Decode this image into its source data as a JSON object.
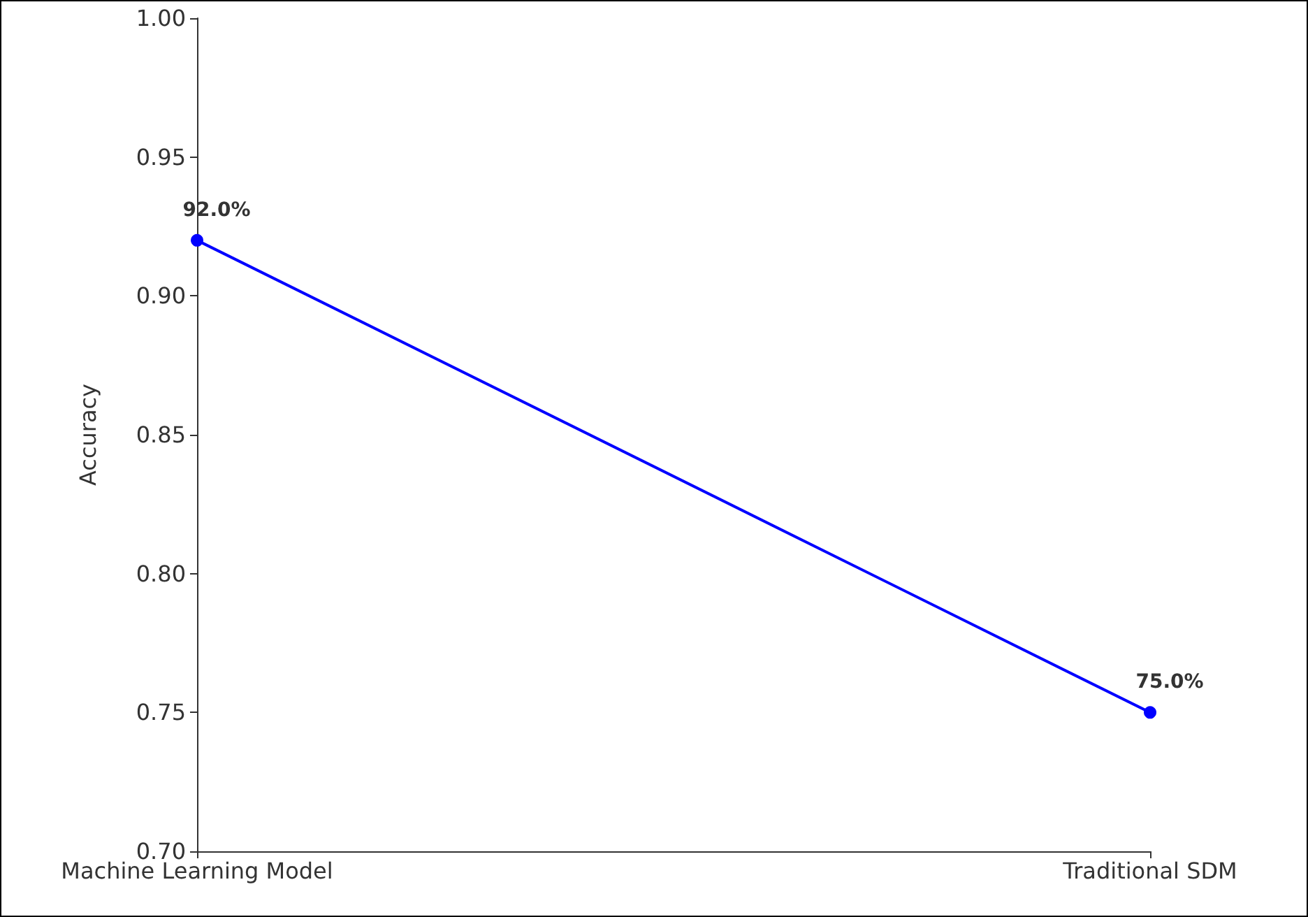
{
  "chart_data": {
    "type": "line",
    "ylabel": "Accuracy",
    "categories": [
      "Machine Learning Model",
      "Traditional SDM"
    ],
    "series": [
      {
        "color": "#0000ff",
        "values": [
          0.92,
          0.75
        ],
        "value_labels": [
          "92.0%",
          "75.0%"
        ]
      }
    ],
    "ylim": [
      0.7,
      1.0
    ],
    "yticks": [
      {
        "value": 0.7,
        "label": "0.70"
      },
      {
        "value": 0.75,
        "label": "0.75"
      },
      {
        "value": 0.8,
        "label": "0.80"
      },
      {
        "value": 0.85,
        "label": "0.85"
      },
      {
        "value": 0.9,
        "label": "0.90"
      },
      {
        "value": 0.95,
        "label": "0.95"
      },
      {
        "value": 1.0,
        "label": "1.00"
      }
    ],
    "grid": false,
    "marker": "circle",
    "line_style": "solid"
  }
}
